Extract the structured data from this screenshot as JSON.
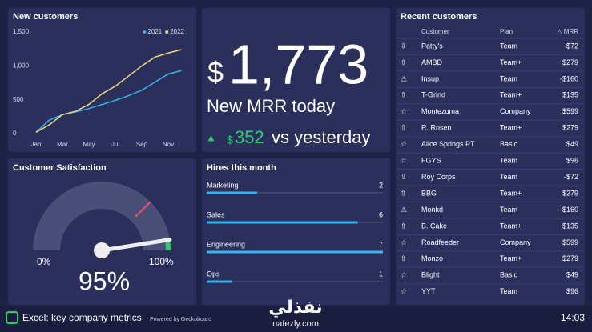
{
  "new_customers": {
    "title": "New customers",
    "type": "line",
    "categories": [
      "Jan",
      null,
      "Mar",
      null,
      "May",
      null,
      "Jul",
      null,
      "Sep",
      null,
      "Nov",
      null
    ],
    "series": [
      {
        "name": "2021",
        "color": "#33b5f0",
        "values": [
          20,
          200,
          280,
          320,
          370,
          430,
          490,
          560,
          640,
          760,
          880,
          930
        ]
      },
      {
        "name": "2022",
        "color": "#f2d77a",
        "values": [
          20,
          130,
          280,
          330,
          430,
          590,
          700,
          850,
          1000,
          1130,
          1190,
          1240
        ]
      }
    ],
    "ylim": [
      0,
      1500
    ],
    "yticks": [
      0,
      500,
      {
        "value": 1000,
        "label": "1,000"
      },
      {
        "value": 1500,
        "label": "1,500"
      }
    ]
  },
  "mrr": {
    "currency": "$",
    "value": "1,773",
    "label": "New MRR today",
    "change_icon": "▲",
    "change_currency": "$",
    "change": "352",
    "change_label": "vs yesterday"
  },
  "satisfaction": {
    "title": "Customer Satisfaction",
    "type": "gauge",
    "min": {
      "value": 0,
      "label": "0%"
    },
    "max": {
      "value": 100,
      "label": "100%"
    },
    "value": 95,
    "value_label": "95%"
  },
  "hires": {
    "title": "Hires this month",
    "type": "bar",
    "categories": [
      "Marketing",
      "Sales",
      "Engineering",
      "Ops"
    ],
    "values": [
      2,
      6,
      7,
      1
    ],
    "xlim": [
      0,
      7
    ],
    "color": "#33b5f0"
  },
  "customers": {
    "title": "Recent customers",
    "columns": [
      "Customer",
      "Plan",
      "△ MRR"
    ],
    "rows": [
      [
        "⇩",
        "Patty's",
        "Team",
        "-$72"
      ],
      [
        "⇧",
        "AMBD",
        "Team+",
        "$279"
      ],
      [
        "⚠",
        "Insup",
        "Team",
        "-$160"
      ],
      [
        "⇧",
        "T-Grind",
        "Team+",
        "$135"
      ],
      [
        "☆",
        "Montezuma",
        "Company",
        "$599"
      ],
      [
        "⇧",
        "R. Rosen",
        "Team+",
        "$279"
      ],
      [
        "☆",
        "Alice Springs PT",
        "Basic",
        "$49"
      ],
      [
        "☆",
        "FGYS",
        "Team",
        "$96"
      ],
      [
        "⇩",
        "Roy Corps",
        "Team",
        "-$72"
      ],
      [
        "⇧",
        "BBG",
        "Team+",
        "$279"
      ],
      [
        "⚠",
        "Monkd",
        "Team",
        "-$160"
      ],
      [
        "⇧",
        "B. Cake",
        "Team+",
        "$135"
      ],
      [
        "☆",
        "Roadfeeder",
        "Company",
        "$599"
      ],
      [
        "⇧",
        "Monzo",
        "Team+",
        "$279"
      ],
      [
        "☆",
        "Blight",
        "Basic",
        "$49"
      ],
      [
        "☆",
        "YYT",
        "Team",
        "$96"
      ]
    ]
  },
  "footer": {
    "title": "Excel: key company metrics",
    "powered_by": "Powered by Geckoboard",
    "time": "14:03"
  },
  "watermark": {
    "arabic": "نفذلي",
    "url": "nafezly.com"
  }
}
